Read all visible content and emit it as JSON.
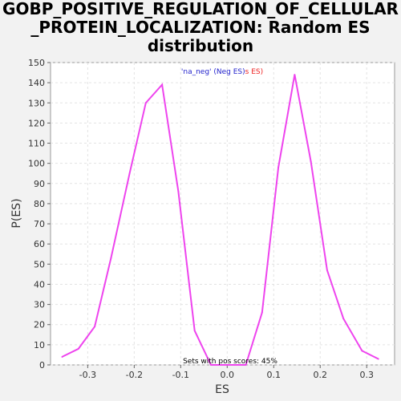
{
  "chart_data": {
    "type": "line",
    "title_lines": [
      "GOBP_POSITIVE_REGULATION_OF_CELLULAR",
      "_PROTEIN_LOCALIZATION: Random ES",
      "distribution"
    ],
    "xlabel": "ES",
    "ylabel": "P(ES)",
    "xlim": [
      -0.38,
      0.36
    ],
    "ylim": [
      0,
      150
    ],
    "xticks": [
      -0.3,
      -0.2,
      -0.1,
      0.0,
      0.1,
      0.2,
      0.3
    ],
    "xtick_labels": [
      "-0.3",
      "-0.2",
      "-0.1",
      "0.0",
      "0.1",
      "0.2",
      "0.3"
    ],
    "yticks": [
      0,
      10,
      20,
      30,
      40,
      50,
      60,
      70,
      80,
      90,
      100,
      110,
      120,
      130,
      140,
      150
    ],
    "grid": true,
    "line_color": "#ee44ee",
    "series": [
      {
        "x": [
          -0.355,
          -0.32,
          -0.285,
          -0.25,
          -0.21,
          -0.175,
          -0.14,
          -0.105,
          -0.07,
          -0.035,
          0.0,
          0.04,
          0.075,
          0.11,
          0.145,
          0.18,
          0.215,
          0.25,
          0.29,
          0.325
        ],
        "values": [
          4,
          8,
          19,
          53,
          95,
          130,
          139,
          86,
          17,
          0,
          0,
          0,
          26,
          98,
          144,
          101,
          47,
          23,
          7,
          3
        ]
      }
    ],
    "annotations": {
      "legend_part1": "'na_neg' (Neg ES)",
      "legend_part1_color": "#2222cc",
      "legend_part2": "s ES)",
      "legend_part2_color": "#ee2222",
      "footer": "Sets with pos scores: 45%"
    }
  }
}
